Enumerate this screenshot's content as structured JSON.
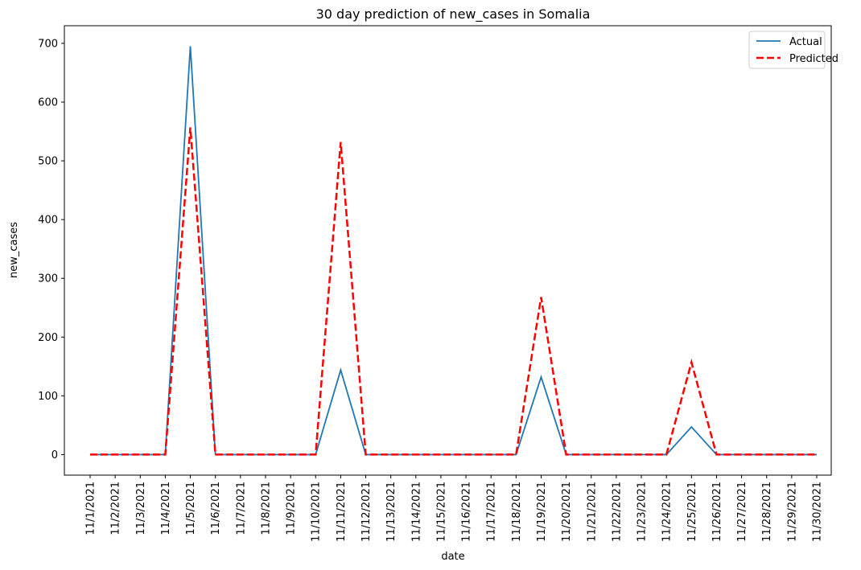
{
  "chart_data": {
    "type": "line",
    "title": "30 day prediction of new_cases in Somalia",
    "xlabel": "date",
    "ylabel": "new_cases",
    "categories": [
      "11/1/2021",
      "11/2/2021",
      "11/3/2021",
      "11/4/2021",
      "11/5/2021",
      "11/6/2021",
      "11/7/2021",
      "11/8/2021",
      "11/9/2021",
      "11/10/2021",
      "11/11/2021",
      "11/12/2021",
      "11/13/2021",
      "11/14/2021",
      "11/15/2021",
      "11/16/2021",
      "11/17/2021",
      "11/18/2021",
      "11/19/2021",
      "11/20/2021",
      "11/21/2021",
      "11/22/2021",
      "11/23/2021",
      "11/24/2021",
      "11/25/2021",
      "11/26/2021",
      "11/27/2021",
      "11/28/2021",
      "11/29/2021",
      "11/30/2021"
    ],
    "series": [
      {
        "name": "Actual",
        "color": "#1f77b4",
        "style": "solid",
        "values": [
          0,
          0,
          0,
          0,
          695,
          0,
          0,
          0,
          0,
          0,
          144,
          0,
          0,
          0,
          0,
          0,
          0,
          0,
          132,
          0,
          0,
          0,
          0,
          0,
          47,
          0,
          0,
          0,
          0,
          0
        ]
      },
      {
        "name": "Predicted",
        "color": "#ff0000",
        "style": "dashed",
        "values": [
          0,
          0,
          0,
          0,
          557,
          0,
          0,
          0,
          0,
          0,
          532,
          0,
          0,
          0,
          0,
          0,
          0,
          0,
          268,
          0,
          0,
          0,
          0,
          0,
          157,
          0,
          0,
          0,
          0,
          0
        ]
      }
    ],
    "ylim": [
      -35,
      730
    ],
    "yticks": [
      0,
      100,
      200,
      300,
      400,
      500,
      600,
      700
    ],
    "grid": false,
    "legend_position": "top-right"
  }
}
